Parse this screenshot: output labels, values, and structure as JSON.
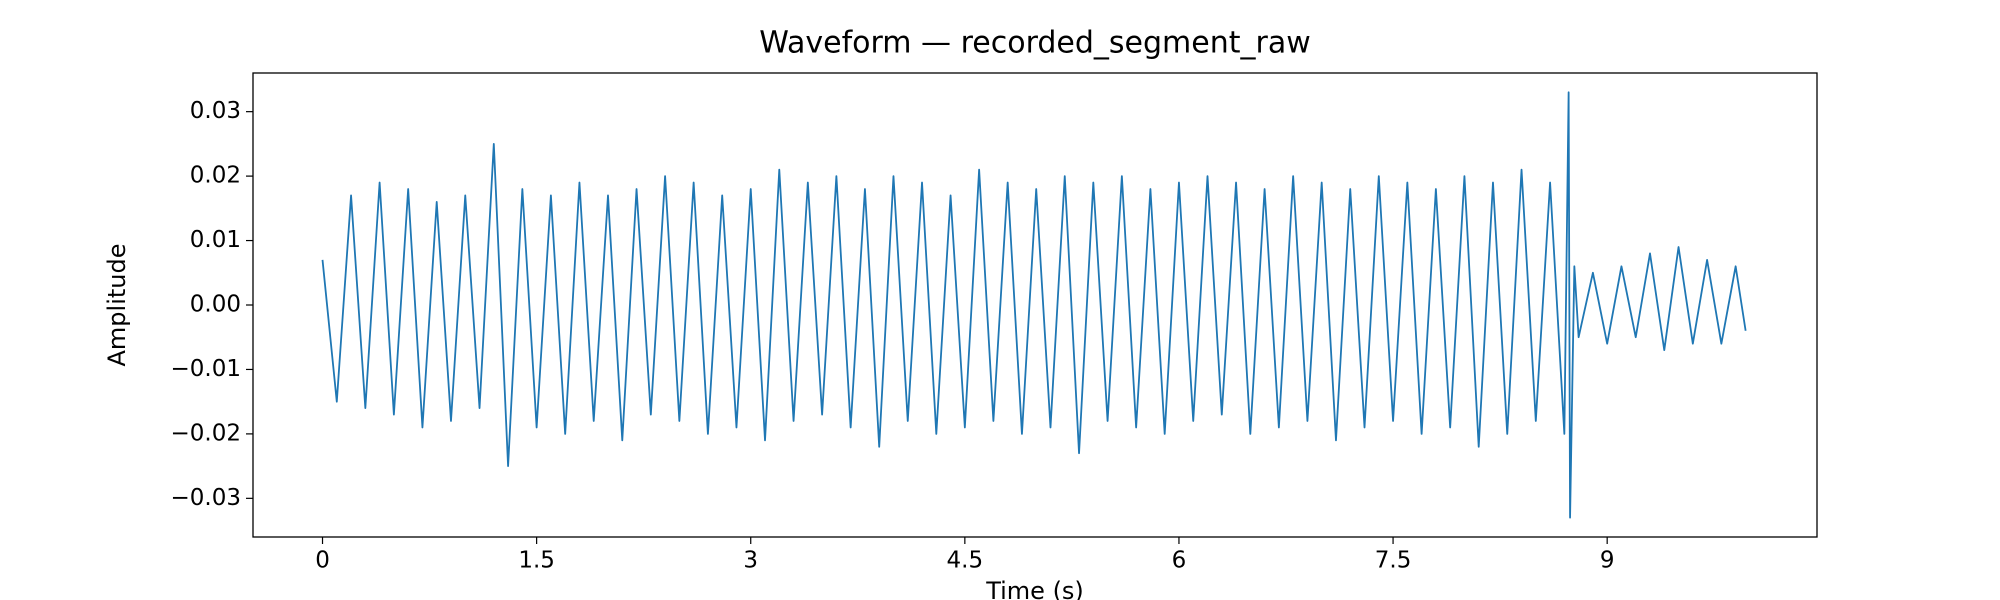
{
  "chart_data": {
    "type": "line",
    "title": "Waveform — recorded_segment_raw",
    "xlabel": "Time (s)",
    "ylabel": "Amplitude",
    "color": "#1f77b4",
    "xlim": [
      -0.487,
      10.47
    ],
    "ylim": [
      -0.036,
      0.036
    ],
    "xticks": [
      0,
      1.5,
      3,
      4.5,
      6,
      7.5,
      9
    ],
    "yticks": [
      {
        "value": -0.03,
        "label": "−0.03"
      },
      {
        "value": -0.02,
        "label": "−0.02"
      },
      {
        "value": -0.01,
        "label": "−0.01"
      },
      {
        "value": 0,
        "label": "0.00"
      },
      0.01,
      0.02,
      0.03
    ],
    "x": [
      0,
      0.1,
      0.2,
      0.3,
      0.4,
      0.5,
      0.6,
      0.7,
      0.8,
      0.9,
      1.0,
      1.1,
      1.2,
      1.3,
      1.4,
      1.5,
      1.6,
      1.7,
      1.8,
      1.9,
      2.0,
      2.1,
      2.2,
      2.3,
      2.4,
      2.5,
      2.6,
      2.7,
      2.8,
      2.9,
      3.0,
      3.1,
      3.2,
      3.3,
      3.4,
      3.5,
      3.6,
      3.7,
      3.8,
      3.9,
      4.0,
      4.1,
      4.2,
      4.3,
      4.4,
      4.5,
      4.6,
      4.7,
      4.8,
      4.9,
      5.0,
      5.1,
      5.2,
      5.3,
      5.4,
      5.5,
      5.6,
      5.7,
      5.8,
      5.9,
      6.0,
      6.1,
      6.2,
      6.3,
      6.4,
      6.5,
      6.6,
      6.7,
      6.8,
      6.9,
      7.0,
      7.1,
      7.2,
      7.3,
      7.4,
      7.5,
      7.6,
      7.7,
      7.8,
      7.9,
      8.0,
      8.1,
      8.2,
      8.3,
      8.4,
      8.5,
      8.6,
      8.7,
      8.73,
      8.74,
      8.77,
      8.8,
      8.9,
      9.0,
      9.1,
      9.2,
      9.3,
      9.4,
      9.5,
      9.6,
      9.7,
      9.8,
      9.9,
      9.97
    ],
    "values": [
      0.007,
      -0.015,
      0.017,
      -0.016,
      0.019,
      -0.017,
      0.018,
      -0.019,
      0.016,
      -0.018,
      0.017,
      -0.016,
      0.025,
      -0.025,
      0.018,
      -0.019,
      0.017,
      -0.02,
      0.019,
      -0.018,
      0.017,
      -0.021,
      0.018,
      -0.017,
      0.02,
      -0.018,
      0.019,
      -0.02,
      0.017,
      -0.019,
      0.018,
      -0.021,
      0.021,
      -0.018,
      0.019,
      -0.017,
      0.02,
      -0.019,
      0.018,
      -0.022,
      0.02,
      -0.018,
      0.019,
      -0.02,
      0.017,
      -0.019,
      0.021,
      -0.018,
      0.019,
      -0.02,
      0.018,
      -0.019,
      0.02,
      -0.023,
      0.019,
      -0.018,
      0.02,
      -0.019,
      0.018,
      -0.02,
      0.019,
      -0.018,
      0.02,
      -0.017,
      0.019,
      -0.02,
      0.018,
      -0.019,
      0.02,
      -0.018,
      0.019,
      -0.021,
      0.018,
      -0.019,
      0.02,
      -0.018,
      0.019,
      -0.02,
      0.018,
      -0.019,
      0.02,
      -0.022,
      0.019,
      -0.02,
      0.021,
      -0.018,
      0.019,
      -0.02,
      0.033,
      -0.033,
      0.006,
      -0.005,
      0.005,
      -0.006,
      0.006,
      -0.005,
      0.008,
      -0.007,
      0.009,
      -0.006,
      0.007,
      -0.006,
      0.006,
      -0.004
    ]
  }
}
